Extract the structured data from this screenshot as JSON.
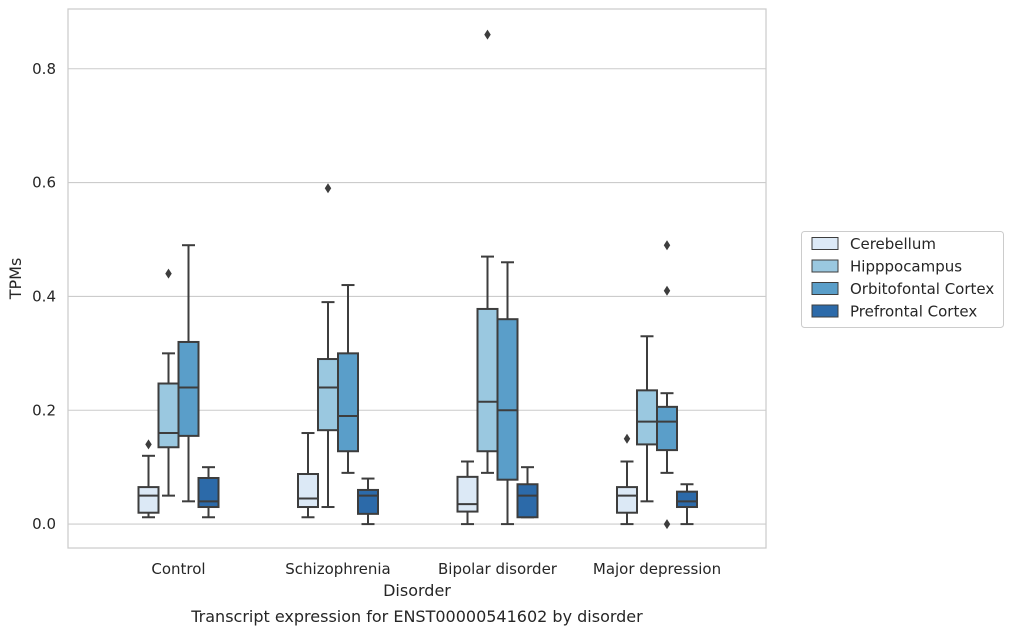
{
  "caption": "Transcript expression for ENST00000541602 by disorder",
  "chart_data": {
    "type": "box",
    "title": "",
    "xlabel": "Disorder",
    "ylabel": "TPMs",
    "ylim": [
      -0.042,
      0.905
    ],
    "yticks": [
      0.0,
      0.2,
      0.4,
      0.6,
      0.8
    ],
    "ytick_labels": [
      "0.0",
      "0.2",
      "0.4",
      "0.6",
      "0.8"
    ],
    "grid": "horizontal",
    "legend_position": "right",
    "categories": [
      "Control",
      "Schizophrenia",
      "Bipolar disorder",
      "Major depression"
    ],
    "series": [
      {
        "name": "Cerebellum",
        "color": "#dce9f6",
        "boxes": [
          {
            "whislo": 0.012,
            "q1": 0.02,
            "med": 0.05,
            "q3": 0.065,
            "whishi": 0.12,
            "fliers": [
              0.14
            ]
          },
          {
            "whislo": 0.012,
            "q1": 0.03,
            "med": 0.045,
            "q3": 0.088,
            "whishi": 0.16,
            "fliers": []
          },
          {
            "whislo": 0.0,
            "q1": 0.022,
            "med": 0.035,
            "q3": 0.083,
            "whishi": 0.11,
            "fliers": []
          },
          {
            "whislo": 0.0,
            "q1": 0.02,
            "med": 0.05,
            "q3": 0.065,
            "whishi": 0.11,
            "fliers": [
              0.15
            ]
          }
        ]
      },
      {
        "name": "Hipppocampus",
        "color": "#9ac8e0",
        "boxes": [
          {
            "whislo": 0.05,
            "q1": 0.135,
            "med": 0.16,
            "q3": 0.247,
            "whishi": 0.3,
            "fliers": [
              0.44
            ]
          },
          {
            "whislo": 0.03,
            "q1": 0.165,
            "med": 0.24,
            "q3": 0.29,
            "whishi": 0.39,
            "fliers": [
              0.59
            ]
          },
          {
            "whislo": 0.09,
            "q1": 0.128,
            "med": 0.215,
            "q3": 0.378,
            "whishi": 0.47,
            "fliers": [
              0.86
            ]
          },
          {
            "whislo": 0.04,
            "q1": 0.14,
            "med": 0.18,
            "q3": 0.235,
            "whishi": 0.33,
            "fliers": []
          }
        ]
      },
      {
        "name": "Orbitofontal Cortex",
        "color": "#5a9ec9",
        "boxes": [
          {
            "whislo": 0.04,
            "q1": 0.155,
            "med": 0.24,
            "q3": 0.32,
            "whishi": 0.49,
            "fliers": []
          },
          {
            "whislo": 0.09,
            "q1": 0.128,
            "med": 0.19,
            "q3": 0.3,
            "whishi": 0.42,
            "fliers": []
          },
          {
            "whislo": 0.0,
            "q1": 0.078,
            "med": 0.2,
            "q3": 0.36,
            "whishi": 0.46,
            "fliers": []
          },
          {
            "whislo": 0.09,
            "q1": 0.13,
            "med": 0.18,
            "q3": 0.206,
            "whishi": 0.23,
            "fliers": [
              0.0,
              0.41,
              0.49
            ]
          }
        ]
      },
      {
        "name": "Prefrontal Cortex",
        "color": "#2c6aa9",
        "boxes": [
          {
            "whislo": 0.012,
            "q1": 0.03,
            "med": 0.04,
            "q3": 0.081,
            "whishi": 0.1,
            "fliers": []
          },
          {
            "whislo": 0.0,
            "q1": 0.018,
            "med": 0.05,
            "q3": 0.06,
            "whishi": 0.08,
            "fliers": []
          },
          {
            "whislo": 0.012,
            "q1": 0.012,
            "med": 0.05,
            "q3": 0.07,
            "whishi": 0.1,
            "fliers": []
          },
          {
            "whislo": 0.0,
            "q1": 0.03,
            "med": 0.04,
            "q3": 0.057,
            "whishi": 0.07,
            "fliers": []
          }
        ]
      }
    ]
  }
}
